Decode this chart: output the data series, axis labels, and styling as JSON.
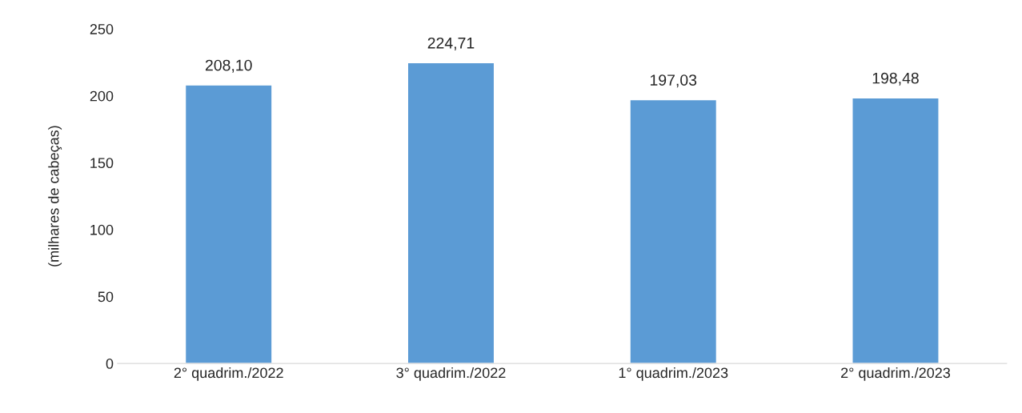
{
  "chart_data": {
    "type": "bar",
    "ylabel": "(milhares de cabeças)",
    "categories": [
      "2° quadrim./2022",
      "3° quadrim./2022",
      "1° quadrim./2023",
      "2° quadrim./2023"
    ],
    "values": [
      208.1,
      224.71,
      197.03,
      198.48
    ],
    "value_labels": [
      "208,10",
      "224,71",
      "197,03",
      "198,48"
    ],
    "color": "#5b9bd5",
    "ylim": [
      0,
      250
    ],
    "yticks": [
      0,
      50,
      100,
      150,
      200,
      250
    ],
    "grid": false,
    "legend": false
  }
}
